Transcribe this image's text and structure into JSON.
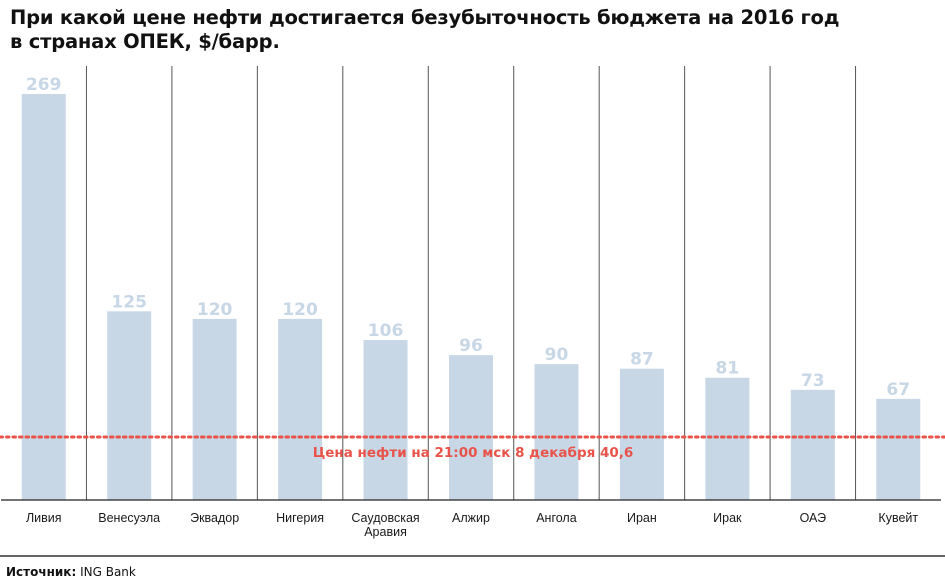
{
  "title_line1": "При какой цене нефти достигается безубыточность бюджета на 2016 год",
  "title_line2": "в странах ОПЕК, $/барр.",
  "source_label": "Источник:",
  "source_value": "ING Bank",
  "chart_data": {
    "type": "bar",
    "categories": [
      "Ливия",
      "Венесуэла",
      "Эквадор",
      "Нигерия",
      "Саудовская Аравия",
      "Алжир",
      "Ангола",
      "Иран",
      "Ирак",
      "ОАЭ",
      "Кувейт"
    ],
    "category_lines": [
      [
        "Ливия"
      ],
      [
        "Венесуэла"
      ],
      [
        "Эквадор"
      ],
      [
        "Нигерия"
      ],
      [
        "Саудовская",
        "Аравия"
      ],
      [
        "Алжир"
      ],
      [
        "Ангола"
      ],
      [
        "Иран"
      ],
      [
        "Ирак"
      ],
      [
        "ОАЭ"
      ],
      [
        "Кувейт"
      ]
    ],
    "values": [
      269,
      125,
      120,
      120,
      106,
      96,
      90,
      87,
      81,
      73,
      67
    ],
    "value_labels": [
      "269",
      "125",
      "120",
      "120",
      "106",
      "96",
      "90",
      "87",
      "81",
      "73",
      "67"
    ],
    "reference_value": 40.6,
    "reference_label": "Цена нефти на 21:00 мск 8 декабря 40,6",
    "ylim": [
      0,
      269
    ],
    "colors": {
      "bar": "#c8d7e6",
      "bar_label": "#c8d7e6",
      "reference": "#e8534a",
      "separator": "#555555",
      "axis": "#222222"
    }
  }
}
